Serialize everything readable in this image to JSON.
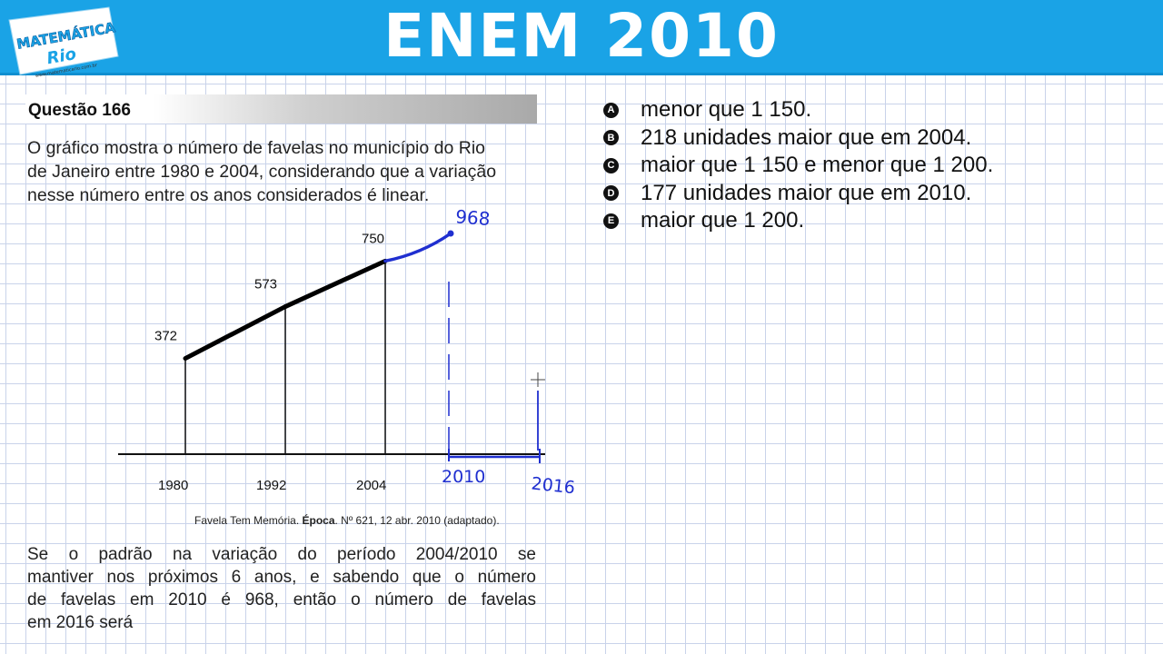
{
  "header": {
    "title": "ENEM 2010",
    "logo_text": "MATEMÁTICA",
    "logo_sub": "www.matematicario.com.br"
  },
  "question": {
    "title": "Questão 166",
    "intro_lines": [
      "O gráfico mostra o número de favelas no município do Rio",
      "de Janeiro  entre 1980 e 2004, considerando que a variação",
      "nesse número entre os anos considerados é linear."
    ],
    "source_prefix": "Favela Tem Memória. ",
    "source_bold": "Época",
    "source_suffix": ". Nº 621, 12 abr. 2010 (adaptado).",
    "body_lines": [
      "Se o padrão na variação do período 2004/2010 se",
      "mantiver nos próximos 6 anos, e sabendo que o número",
      "de favelas em 2010 é 968, então o número de favelas",
      "em 2016 será"
    ]
  },
  "options": [
    {
      "letter": "A",
      "text": "menor que 1 150."
    },
    {
      "letter": "B",
      "text": "218 unidades maior que em 2004."
    },
    {
      "letter": "C",
      "text": "maior que 1 150 e menor que 1 200."
    },
    {
      "letter": "D",
      "text": "177 unidades maior que em 2010."
    },
    {
      "letter": "E",
      "text": "maior que 1 200."
    }
  ],
  "chart_data": {
    "type": "line",
    "x": [
      1980,
      1992,
      2004
    ],
    "y": [
      372,
      573,
      750
    ],
    "x_tick_labels": [
      "1980",
      "1992",
      "2004"
    ],
    "value_labels": [
      "372",
      "573",
      "750"
    ],
    "annotation": {
      "x": [
        2004,
        2010
      ],
      "y": [
        750,
        968
      ],
      "value_label": "968",
      "handwritten_ticks": [
        "2010",
        "2016"
      ],
      "color": "#1f2fd0"
    },
    "colors": {
      "data_line": "#000000",
      "annotation": "#1f2fd0"
    }
  },
  "colors": {
    "header_bg": "#1aa3e6",
    "grid": "#c9d3ea"
  }
}
